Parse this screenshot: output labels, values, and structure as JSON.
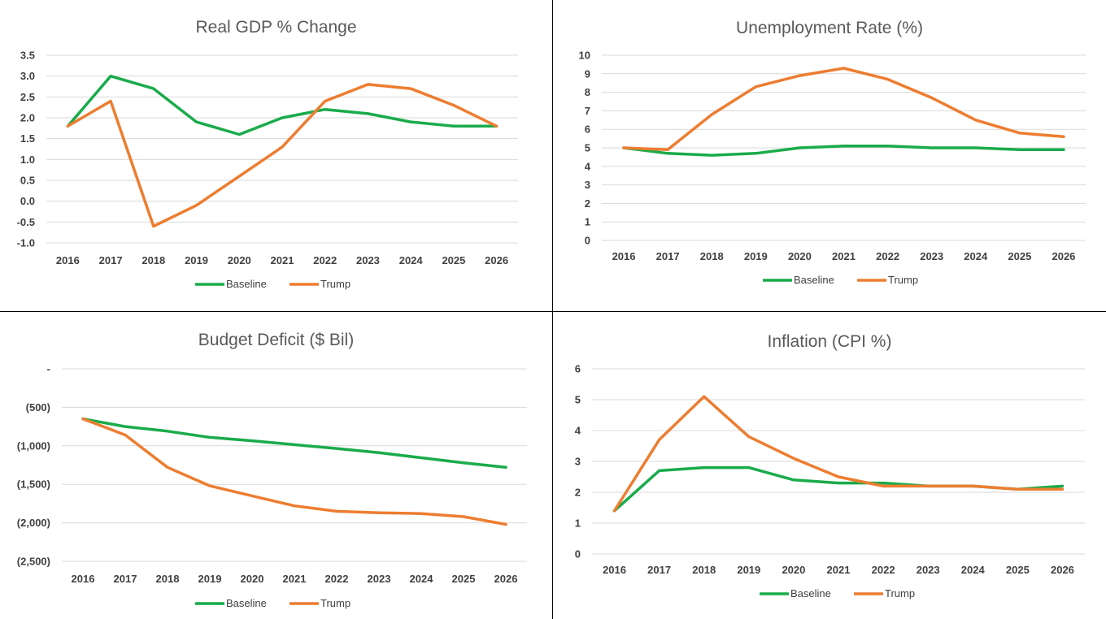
{
  "colors": {
    "baseline": "#1aab4b",
    "trump": "#ed7d31"
  },
  "chart_data": [
    {
      "type": "line",
      "title": "Real GDP % Change",
      "x": [
        "2016",
        "2017",
        "2018",
        "2019",
        "2020",
        "2021",
        "2022",
        "2023",
        "2024",
        "2025",
        "2026"
      ],
      "ylim": [
        -1.0,
        3.5
      ],
      "yticks": [
        "3.5",
        "3.0",
        "2.5",
        "2.0",
        "1.5",
        "1.0",
        "0.5",
        "0.0",
        "-0.5",
        "-1.0"
      ],
      "grid": true,
      "legend": "bottom",
      "series": [
        {
          "name": "Baseline",
          "color": "#1aab4b",
          "values": [
            1.8,
            3.0,
            2.7,
            1.9,
            1.6,
            2.0,
            2.2,
            2.1,
            1.9,
            1.8,
            1.8
          ]
        },
        {
          "name": "Trump",
          "color": "#ed7d31",
          "values": [
            1.8,
            2.4,
            -0.6,
            -0.1,
            0.6,
            1.3,
            2.4,
            2.8,
            2.7,
            2.3,
            1.8
          ]
        }
      ]
    },
    {
      "type": "line",
      "title": "Unemployment Rate (%)",
      "x": [
        "2016",
        "2017",
        "2018",
        "2019",
        "2020",
        "2021",
        "2022",
        "2023",
        "2024",
        "2025",
        "2026"
      ],
      "ylim": [
        0,
        10
      ],
      "yticks": [
        "10",
        "9",
        "8",
        "7",
        "6",
        "5",
        "4",
        "3",
        "2",
        "1",
        "0"
      ],
      "grid": true,
      "legend": "bottom",
      "series": [
        {
          "name": "Baseline",
          "color": "#1aab4b",
          "values": [
            5.0,
            4.7,
            4.6,
            4.7,
            5.0,
            5.1,
            5.1,
            5.0,
            5.0,
            4.9,
            4.9
          ]
        },
        {
          "name": "Trump",
          "color": "#ed7d31",
          "values": [
            5.0,
            4.9,
            6.8,
            8.3,
            8.9,
            9.3,
            8.7,
            7.7,
            6.5,
            5.8,
            5.6
          ]
        }
      ]
    },
    {
      "type": "line",
      "title": "Budget Deficit ($ Bil)",
      "x": [
        "2016",
        "2017",
        "2018",
        "2019",
        "2020",
        "2021",
        "2022",
        "2023",
        "2024",
        "2025",
        "2026"
      ],
      "ylim": [
        -2500,
        0
      ],
      "yticks": [
        "-",
        "(500)",
        "(1,000)",
        "(1,500)",
        "(2,000)",
        "(2,500)"
      ],
      "grid": true,
      "legend": "bottom",
      "series": [
        {
          "name": "Baseline",
          "color": "#1aab4b",
          "values": [
            -650,
            -750,
            -810,
            -890,
            -935,
            -985,
            -1035,
            -1090,
            -1155,
            -1220,
            -1280
          ]
        },
        {
          "name": "Trump",
          "color": "#ed7d31",
          "values": [
            -650,
            -860,
            -1280,
            -1520,
            -1650,
            -1780,
            -1850,
            -1870,
            -1880,
            -1920,
            -2020
          ]
        }
      ]
    },
    {
      "type": "line",
      "title": "Inflation (CPI %)",
      "x": [
        "2016",
        "2017",
        "2018",
        "2019",
        "2020",
        "2021",
        "2022",
        "2023",
        "2024",
        "2025",
        "2026"
      ],
      "ylim": [
        0,
        6
      ],
      "yticks": [
        "6",
        "5",
        "4",
        "3",
        "2",
        "1",
        "0"
      ],
      "grid": true,
      "legend": "bottom",
      "series": [
        {
          "name": "Baseline",
          "color": "#1aab4b",
          "values": [
            1.4,
            2.7,
            2.8,
            2.8,
            2.4,
            2.3,
            2.3,
            2.2,
            2.2,
            2.1,
            2.2
          ]
        },
        {
          "name": "Trump",
          "color": "#ed7d31",
          "values": [
            1.4,
            3.7,
            5.1,
            3.8,
            3.1,
            2.5,
            2.2,
            2.2,
            2.2,
            2.1,
            2.1
          ]
        }
      ]
    }
  ]
}
